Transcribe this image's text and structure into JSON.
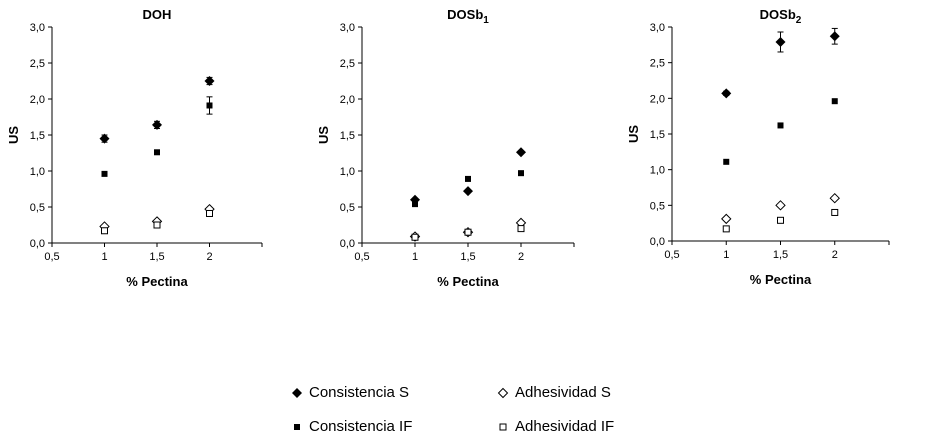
{
  "chart_data": [
    {
      "type": "scatter",
      "title": "DOH",
      "title_sub": "",
      "xlabel": "% Pectina",
      "ylabel": "US",
      "xlim": [
        0.5,
        2.5
      ],
      "ylim": [
        0,
        3
      ],
      "xticks": [
        "0,5",
        "1",
        "1,5",
        "2"
      ],
      "yticks": [
        "0,0",
        "0,5",
        "1,0",
        "1,5",
        "2,0",
        "2,5",
        "3,0"
      ],
      "x": [
        1,
        1.5,
        2
      ],
      "series": [
        {
          "name": "Consistencia S",
          "values": [
            1.45,
            1.64,
            2.25
          ],
          "errors": [
            0.05,
            0.05,
            0.05
          ]
        },
        {
          "name": "Consistencia IF",
          "values": [
            0.96,
            1.26,
            1.91
          ],
          "errors": [
            0.02,
            0.03,
            0.12
          ]
        },
        {
          "name": "Adhesividad S",
          "values": [
            0.23,
            0.3,
            0.47
          ],
          "errors": [
            0,
            0,
            0
          ]
        },
        {
          "name": "Adhesividad IF",
          "values": [
            0.17,
            0.25,
            0.41
          ],
          "errors": [
            0,
            0,
            0
          ]
        }
      ]
    },
    {
      "type": "scatter",
      "title": "DOSb",
      "title_sub": "1",
      "xlabel": "% Pectina",
      "ylabel": "US",
      "xlim": [
        0.5,
        2.5
      ],
      "ylim": [
        0,
        3
      ],
      "xticks": [
        "0,5",
        "1",
        "1,5",
        "2"
      ],
      "yticks": [
        "0,0",
        "0,5",
        "1,0",
        "1,5",
        "2,0",
        "2,5",
        "3,0"
      ],
      "x": [
        1,
        1.5,
        2
      ],
      "series": [
        {
          "name": "Consistencia S",
          "values": [
            0.6,
            0.72,
            1.26
          ],
          "errors": [
            0,
            0,
            0
          ]
        },
        {
          "name": "Consistencia IF",
          "values": [
            0.54,
            0.89,
            0.97
          ],
          "errors": [
            0,
            0.02,
            0
          ]
        },
        {
          "name": "Adhesividad S",
          "values": [
            0.09,
            0.15,
            0.28
          ],
          "errors": [
            0,
            0,
            0
          ]
        },
        {
          "name": "Adhesividad IF",
          "values": [
            0.08,
            0.15,
            0.2
          ],
          "errors": [
            0,
            0,
            0
          ]
        }
      ]
    },
    {
      "type": "scatter",
      "title": "DOSb",
      "title_sub": "2",
      "xlabel": "% Pectina",
      "ylabel": "US",
      "xlim": [
        0.5,
        2.5
      ],
      "ylim": [
        0,
        3
      ],
      "xticks": [
        "0,5",
        "1",
        "1,5",
        "2"
      ],
      "yticks": [
        "0,0",
        "0,5",
        "1,0",
        "1,5",
        "2,0",
        "2,5",
        "3,0"
      ],
      "x": [
        1,
        1.5,
        2
      ],
      "series": [
        {
          "name": "Consistencia S",
          "values": [
            2.07,
            2.79,
            2.87
          ],
          "errors": [
            0.03,
            0.14,
            0.11
          ]
        },
        {
          "name": "Consistencia IF",
          "values": [
            1.11,
            1.62,
            1.96
          ],
          "errors": [
            0,
            0.02,
            0
          ]
        },
        {
          "name": "Adhesividad S",
          "values": [
            0.31,
            0.5,
            0.6
          ],
          "errors": [
            0,
            0,
            0
          ]
        },
        {
          "name": "Adhesividad IF",
          "values": [
            0.17,
            0.29,
            0.4
          ],
          "errors": [
            0,
            0,
            0
          ]
        }
      ]
    }
  ],
  "legend": {
    "placement": "bottom",
    "items": [
      {
        "label": "Consistencia S",
        "marker": "diamond-filled"
      },
      {
        "label": "Adhesividad S",
        "marker": "diamond-open"
      },
      {
        "label": "Consistencia IF",
        "marker": "square-filled"
      },
      {
        "label": "Adhesividad IF",
        "marker": "square-open"
      }
    ]
  },
  "colors": {
    "marker": "#000000",
    "axis": "#000000"
  }
}
